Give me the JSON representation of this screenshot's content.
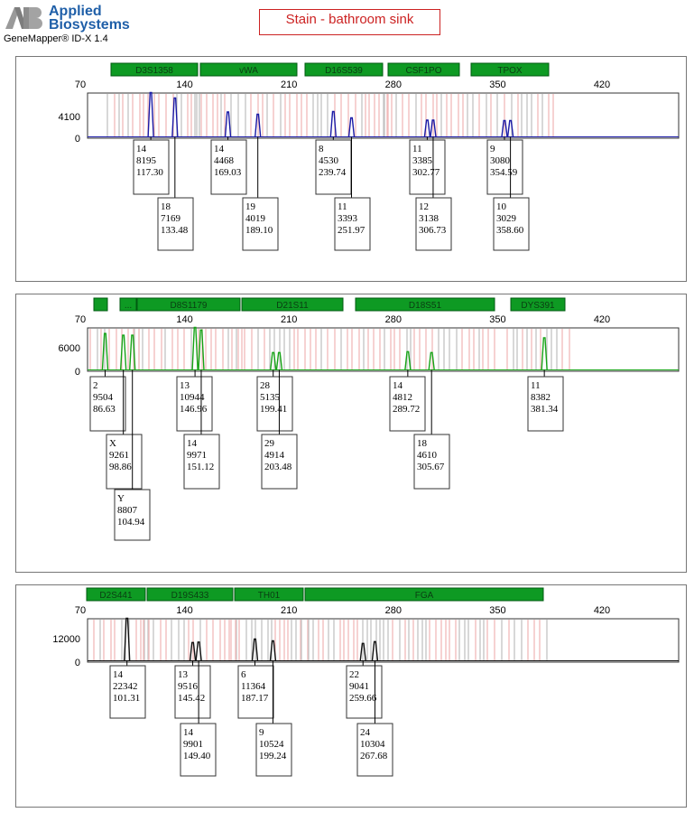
{
  "header": {
    "brand_line1": "Applied",
    "brand_line2": "Biosystems",
    "software": "GeneMapper® ID-X  1.4",
    "sample_title": "Stain - bathroom sink"
  },
  "axis_ticks": [
    "70",
    "140",
    "210",
    "280",
    "350",
    "420"
  ],
  "colors": {
    "marker_fill": "#0e9a23",
    "marker_border": "#005a10",
    "bin_pink": "#f2b9b9",
    "bin_gray": "#c4c4c4",
    "title_red": "#cc2222"
  },
  "panels": [
    {
      "dye": "blue",
      "trace_color": "#1a1aa6",
      "y_label": "4100",
      "y_zero": "0",
      "markers": [
        "D3S1358",
        "vWA",
        "D16S539",
        "CSF1PO",
        "TPOX"
      ],
      "peaks": [
        {
          "allele": "14",
          "height": "8195",
          "size": "117.30"
        },
        {
          "allele": "18",
          "height": "7169",
          "size": "133.48"
        },
        {
          "allele": "14",
          "height": "4468",
          "size": "169.03"
        },
        {
          "allele": "19",
          "height": "4019",
          "size": "189.10"
        },
        {
          "allele": "8",
          "height": "4530",
          "size": "239.74"
        },
        {
          "allele": "11",
          "height": "3393",
          "size": "251.97"
        },
        {
          "allele": "11",
          "height": "3385",
          "size": "302.77"
        },
        {
          "allele": "12",
          "height": "3138",
          "size": "306.73"
        },
        {
          "allele": "9",
          "height": "3080",
          "size": "354.59"
        },
        {
          "allele": "10",
          "height": "3029",
          "size": "358.60"
        }
      ]
    },
    {
      "dye": "green",
      "trace_color": "#16a316",
      "y_label": "6000",
      "y_zero": "0",
      "markers": [
        "",
        "...",
        "D8S1179",
        "D21S11",
        "D18S51",
        "DYS391"
      ],
      "peaks": [
        {
          "allele": "2",
          "height": "9504",
          "size": "86.63"
        },
        {
          "allele": "X",
          "height": "9261",
          "size": "98.86"
        },
        {
          "allele": "Y",
          "height": "8807",
          "size": "104.94"
        },
        {
          "allele": "13",
          "height": "10944",
          "size": "146.96"
        },
        {
          "allele": "14",
          "height": "9971",
          "size": "151.12"
        },
        {
          "allele": "28",
          "height": "5135",
          "size": "199.41"
        },
        {
          "allele": "29",
          "height": "4914",
          "size": "203.48"
        },
        {
          "allele": "14",
          "height": "4812",
          "size": "289.72"
        },
        {
          "allele": "18",
          "height": "4610",
          "size": "305.67"
        },
        {
          "allele": "11",
          "height": "8382",
          "size": "381.34"
        }
      ]
    },
    {
      "dye": "black",
      "trace_color": "#111111",
      "y_label": "12000",
      "y_zero": "0",
      "markers": [
        "D2S441",
        "D19S433",
        "TH01",
        "FGA"
      ],
      "peaks": [
        {
          "allele": "14",
          "height": "22342",
          "size": "101.31"
        },
        {
          "allele": "13",
          "height": "9516",
          "size": "145.42"
        },
        {
          "allele": "14",
          "height": "9901",
          "size": "149.40"
        },
        {
          "allele": "6",
          "height": "11364",
          "size": "187.17"
        },
        {
          "allele": "9",
          "height": "10524",
          "size": "199.24"
        },
        {
          "allele": "22",
          "height": "9041",
          "size": "259.66"
        },
        {
          "allele": "24",
          "height": "10304",
          "size": "267.68"
        }
      ]
    }
  ]
}
